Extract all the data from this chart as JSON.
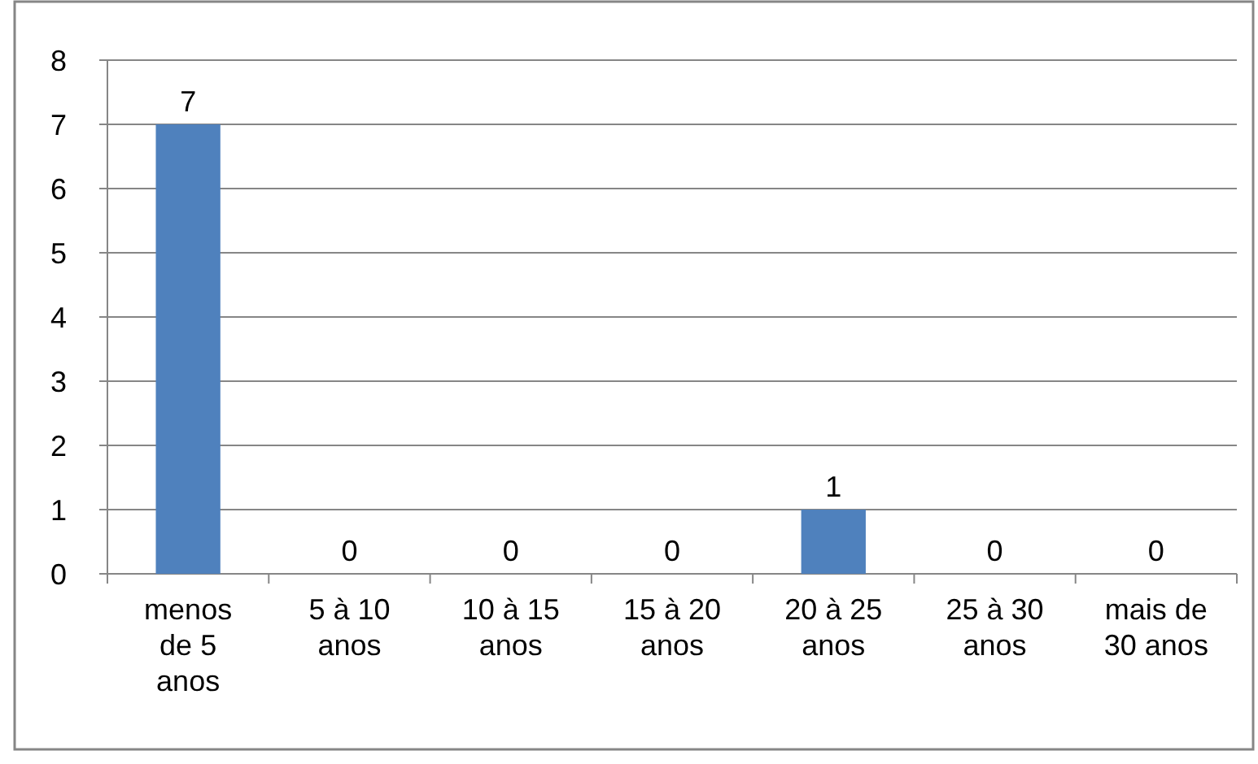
{
  "chart_data": {
    "type": "bar",
    "categories": [
      "menos de 5 anos",
      "5 à 10 anos",
      "10 à 15 anos",
      "15 à 20 anos",
      "20 à 25 anos",
      "25 à 30 anos",
      "mais de 30 anos"
    ],
    "values": [
      7,
      0,
      0,
      0,
      1,
      0,
      0
    ],
    "color": "#4f81bd",
    "ylim": [
      0,
      8
    ],
    "yticks": [
      0,
      1,
      2,
      3,
      4,
      5,
      6,
      7,
      8
    ],
    "grid": "y",
    "data_labels": true
  }
}
